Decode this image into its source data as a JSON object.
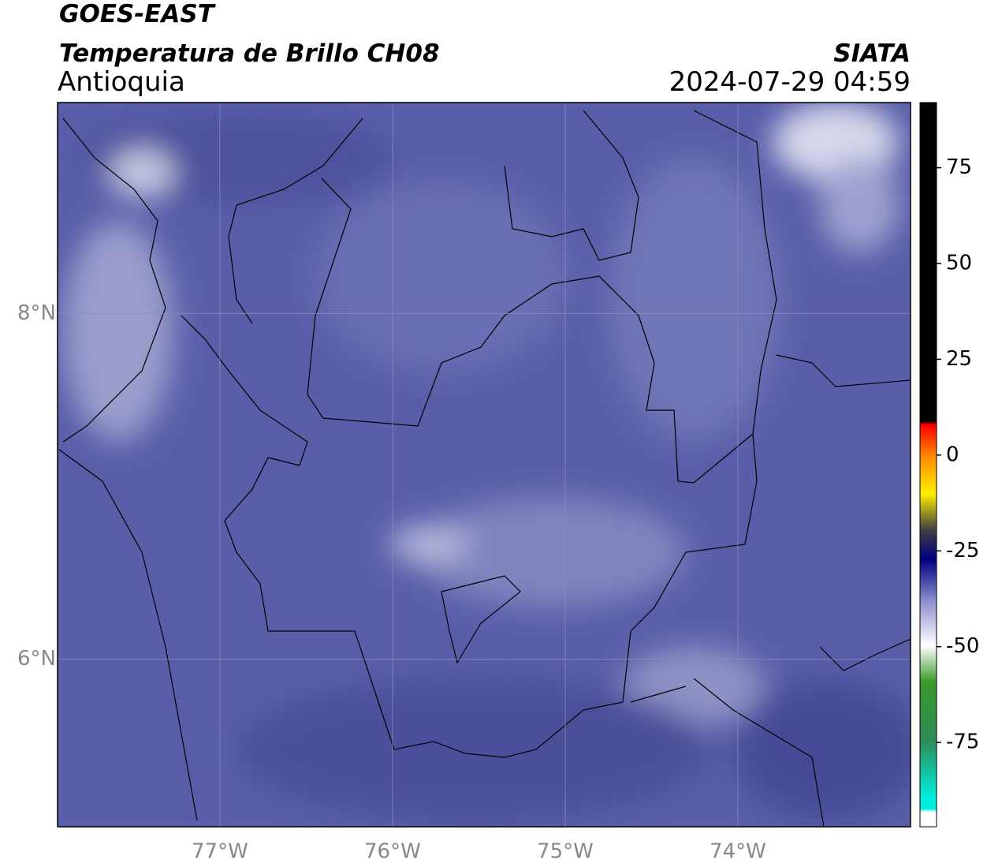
{
  "header": {
    "title": "GOES-EAST",
    "subtitle": "Temperatura de Brillo CH08",
    "region": "Antioquia",
    "source": "SIATA",
    "datetime": "2024-07-29 04:59"
  },
  "map": {
    "lon_range": [
      -77.94,
      -73.0
    ],
    "lat_range": [
      5.03,
      9.22
    ],
    "lon_ticks": [
      {
        "value": -77,
        "label": "77°W"
      },
      {
        "value": -76,
        "label": "76°W"
      },
      {
        "value": -75,
        "label": "75°W"
      },
      {
        "value": -74,
        "label": "74°W"
      }
    ],
    "lat_ticks": [
      {
        "value": 8,
        "label": "8°N"
      },
      {
        "value": 6,
        "label": "6°N"
      }
    ]
  },
  "colorbar": {
    "range": [
      -97,
      92
    ],
    "ticks": [
      75,
      50,
      25,
      0,
      -25,
      -50,
      -75
    ]
  }
}
